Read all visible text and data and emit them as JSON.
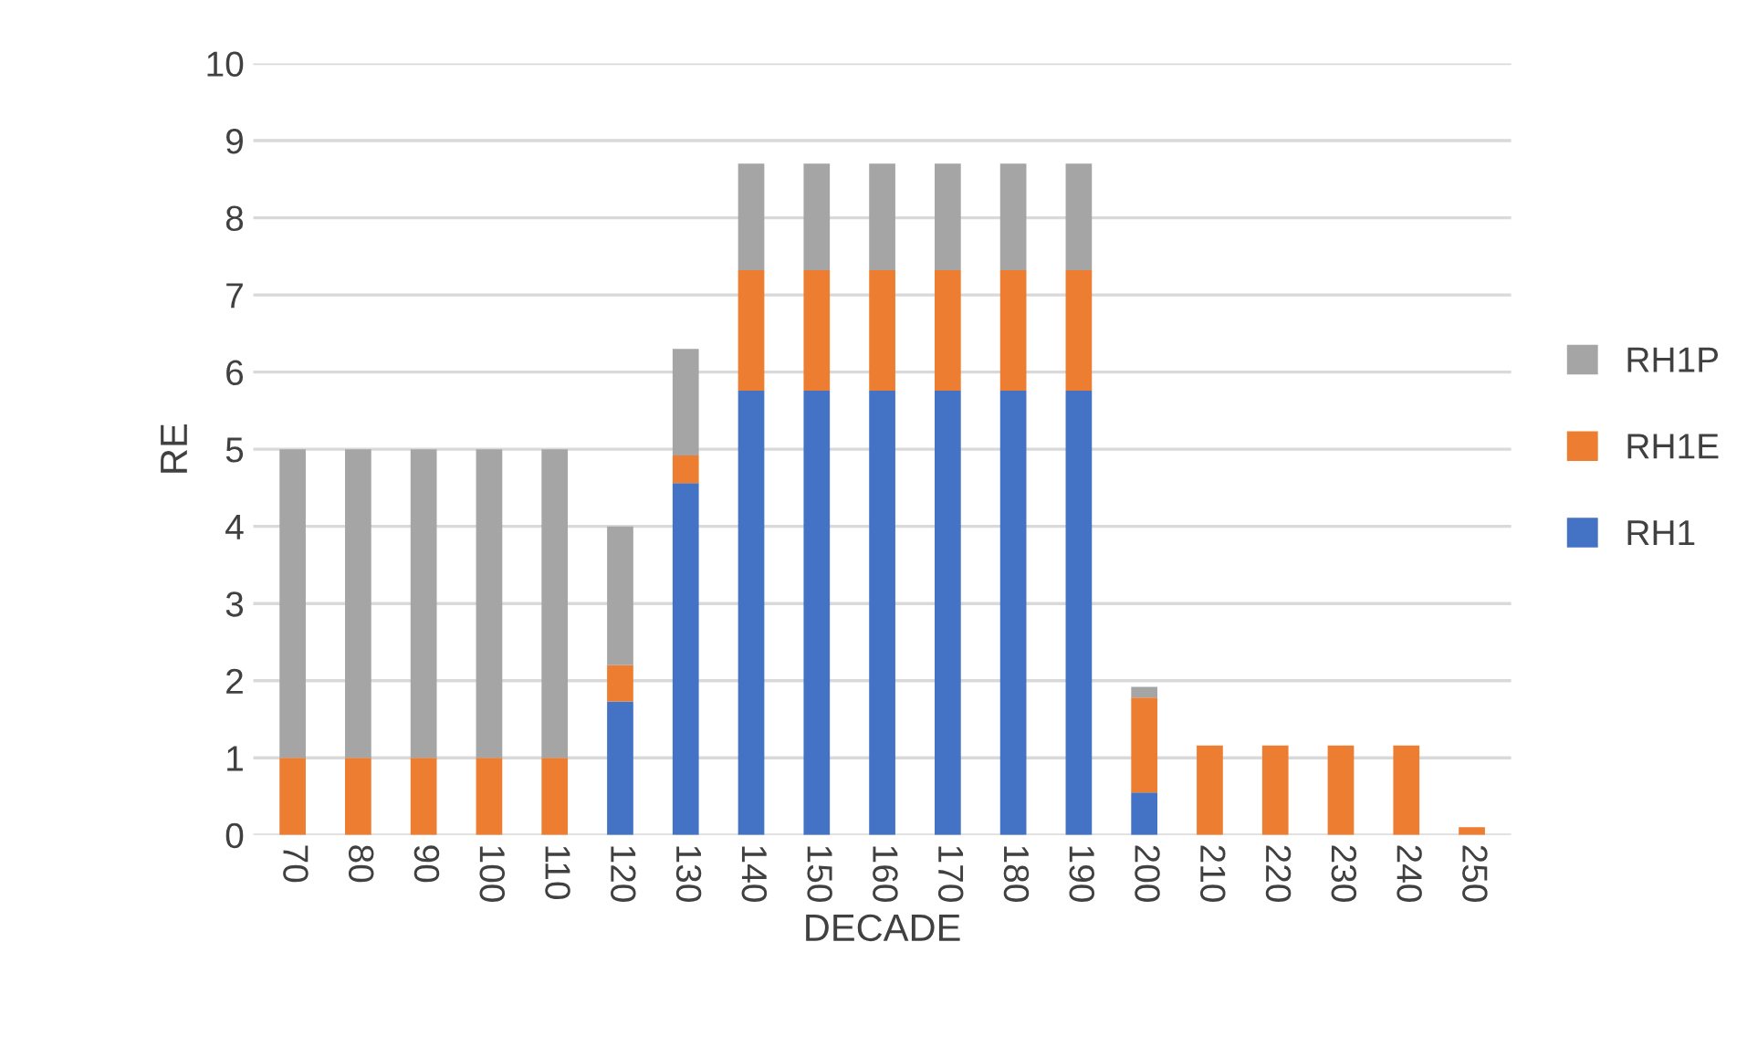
{
  "chart_data": {
    "type": "bar",
    "stacked": true,
    "xlabel": "DECADE",
    "ylabel": "RE",
    "categories": [
      "70",
      "80",
      "90",
      "100",
      "110",
      "120",
      "130",
      "140",
      "150",
      "160",
      "170",
      "180",
      "190",
      "200",
      "210",
      "220",
      "230",
      "240",
      "250"
    ],
    "series": [
      {
        "name": "RH1",
        "color": "#4472c4",
        "values": [
          0,
          0,
          0,
          0,
          0,
          1.73,
          4.56,
          5.76,
          5.76,
          5.76,
          5.76,
          5.76,
          5.76,
          0.55,
          0,
          0,
          0,
          0,
          0
        ]
      },
      {
        "name": "RH1E",
        "color": "#ed7d31",
        "values": [
          1,
          1,
          1,
          1,
          1,
          0.47,
          0.36,
          1.56,
          1.56,
          1.56,
          1.56,
          1.56,
          1.56,
          1.23,
          1.16,
          1.16,
          1.16,
          1.16,
          0.1
        ]
      },
      {
        "name": "RH1P",
        "color": "#a5a5a5",
        "values": [
          4,
          4,
          4,
          4,
          4,
          1.8,
          1.38,
          1.38,
          1.38,
          1.38,
          1.38,
          1.38,
          1.38,
          0.14,
          0,
          0,
          0,
          0,
          0
        ]
      }
    ],
    "ylim": [
      0,
      10
    ],
    "yticks": [
      0,
      1,
      2,
      3,
      4,
      5,
      6,
      7,
      8,
      9,
      10
    ],
    "grid": "y",
    "legend": "right"
  }
}
